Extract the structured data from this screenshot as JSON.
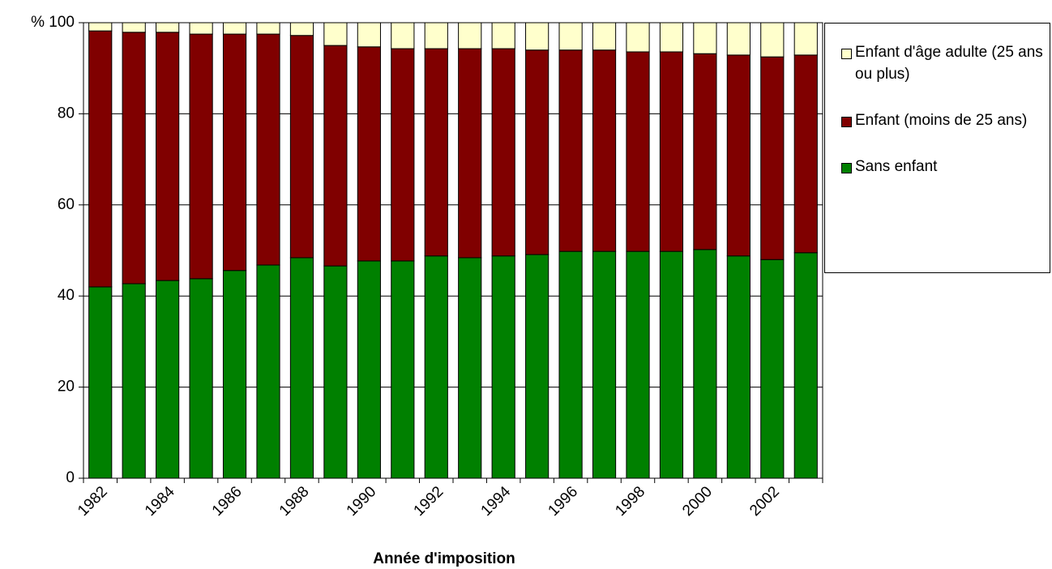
{
  "chart_data": {
    "type": "stacked_bar",
    "x_label": "Année d'imposition",
    "categories": [
      "1982",
      null,
      "1984",
      null,
      "1986",
      null,
      "1988",
      null,
      "1990",
      null,
      "1992",
      null,
      "1994",
      null,
      "1996",
      null,
      "1998",
      null,
      "2000",
      null,
      "2002",
      null
    ],
    "series": [
      {
        "name": "Sans enfant",
        "color": "#008000",
        "values": [
          42.0,
          42.7,
          43.4,
          43.8,
          45.6,
          46.8,
          48.4,
          46.6,
          47.7,
          47.7,
          48.8,
          48.4,
          48.8,
          49.1,
          49.8,
          49.8,
          49.8,
          49.8,
          50.2,
          48.8,
          48.0,
          49.5
        ]
      },
      {
        "name": "Enfant (moins de 25 ans)",
        "color": "#800000",
        "values": [
          56.2,
          55.2,
          54.5,
          53.7,
          51.9,
          50.7,
          48.8,
          48.4,
          47.0,
          46.6,
          45.5,
          45.9,
          45.5,
          44.9,
          44.2,
          44.2,
          43.8,
          43.8,
          43.0,
          44.1,
          44.5,
          43.4
        ]
      },
      {
        "name": "Enfant d'âge adulte (25 ans ou plus)",
        "color": "#ffffcc",
        "values": [
          1.8,
          2.1,
          2.1,
          2.5,
          2.5,
          2.5,
          2.8,
          5.0,
          5.3,
          5.7,
          5.7,
          5.7,
          5.7,
          6.0,
          6.0,
          6.0,
          6.4,
          6.4,
          6.8,
          7.1,
          7.5,
          7.1
        ]
      }
    ],
    "ylim": [
      0,
      100
    ],
    "yticks": [
      0,
      20,
      40,
      60,
      80,
      {
        "value": 100,
        "label": "% 100"
      }
    ],
    "grid": true,
    "legend": "right"
  }
}
